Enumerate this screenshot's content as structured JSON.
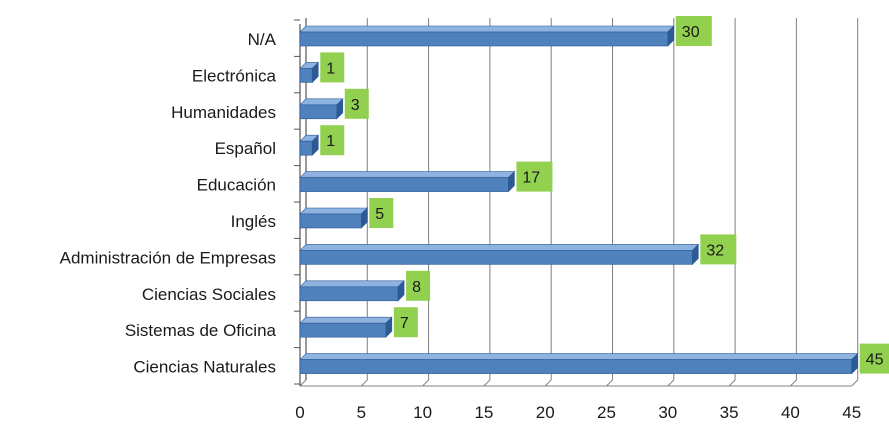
{
  "chart_data": {
    "type": "bar",
    "orientation": "horizontal",
    "style": "3d",
    "categories": [
      "N/A",
      "Electrónica",
      "Humanidades",
      "Español",
      "Educación",
      "Inglés",
      "Administración de Empresas",
      "Ciencias Sociales",
      "Sistemas de Oficina",
      "Ciencias Naturales"
    ],
    "values": [
      30,
      1,
      3,
      1,
      17,
      5,
      32,
      8,
      7,
      45
    ],
    "data_labels": [
      "30",
      "1",
      "3",
      "1",
      "17",
      "5",
      "32",
      "8",
      "7",
      "45"
    ],
    "x_ticks": [
      "0",
      "5",
      "10",
      "15",
      "20",
      "25",
      "30",
      "35",
      "40",
      "45"
    ],
    "xlim": [
      0,
      45
    ],
    "grid": "vertical",
    "legend": "none",
    "colors": {
      "bar": "#4f81bd",
      "bar_dark": "#2c5a94",
      "bar_light": "#8fb3e0",
      "label_box": "#92d050",
      "grid": "#808080",
      "wall": "#ffffff"
    }
  }
}
